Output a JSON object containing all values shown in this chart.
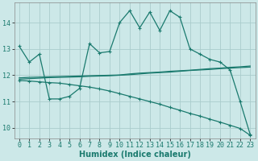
{
  "title": "",
  "xlabel": "Humidex (Indice chaleur)",
  "background_color": "#cce8e8",
  "grid_color": "#aacccc",
  "line_color": "#1a7a6e",
  "xlim": [
    -0.5,
    23.5
  ],
  "ylim": [
    9.6,
    14.75
  ],
  "yticks": [
    10,
    11,
    12,
    13,
    14
  ],
  "xticks": [
    0,
    1,
    2,
    3,
    4,
    5,
    6,
    7,
    8,
    9,
    10,
    11,
    12,
    13,
    14,
    15,
    16,
    17,
    18,
    19,
    20,
    21,
    22,
    23
  ],
  "series1_x": [
    0,
    1,
    2,
    3,
    4,
    5,
    6,
    7,
    8,
    9,
    10,
    11,
    12,
    13,
    14,
    15,
    16,
    17,
    18,
    19,
    20,
    21,
    22,
    23
  ],
  "series1_y": [
    13.1,
    12.5,
    12.8,
    11.1,
    11.1,
    11.2,
    11.5,
    13.2,
    12.85,
    12.9,
    14.0,
    14.45,
    13.8,
    14.4,
    13.7,
    14.45,
    14.2,
    13.0,
    12.8,
    12.6,
    12.5,
    12.2,
    11.0,
    9.75
  ],
  "series2_x": [
    0,
    1,
    2,
    3,
    4,
    5,
    6,
    7,
    8,
    9,
    10,
    11,
    12,
    13,
    14,
    15,
    16,
    17,
    18,
    19,
    20,
    21,
    22,
    23
  ],
  "series2_y": [
    11.9,
    11.92,
    11.93,
    11.94,
    11.95,
    11.96,
    11.97,
    11.98,
    11.99,
    12.0,
    12.01,
    12.05,
    12.08,
    12.1,
    12.12,
    12.15,
    12.17,
    12.19,
    12.22,
    12.25,
    12.27,
    12.3,
    12.32,
    12.35
  ],
  "series3_x": [
    0,
    1,
    2,
    3,
    4,
    5,
    6,
    7,
    8,
    9,
    10,
    11,
    12,
    13,
    14,
    15,
    16,
    17,
    18,
    19,
    20,
    21,
    22,
    23
  ],
  "series3_y": [
    11.85,
    11.87,
    11.89,
    11.91,
    11.92,
    11.93,
    11.94,
    11.96,
    11.97,
    11.98,
    12.0,
    12.02,
    12.05,
    12.08,
    12.1,
    12.12,
    12.15,
    12.18,
    12.2,
    12.22,
    12.25,
    12.27,
    12.29,
    12.31
  ],
  "series4_x": [
    0,
    1,
    2,
    3,
    4,
    5,
    6,
    7,
    8,
    9,
    10,
    11,
    12,
    13,
    14,
    15,
    16,
    17,
    18,
    19,
    20,
    21,
    22,
    23
  ],
  "series4_y": [
    11.8,
    11.78,
    11.75,
    11.72,
    11.7,
    11.65,
    11.6,
    11.55,
    11.48,
    11.4,
    11.3,
    11.2,
    11.1,
    11.0,
    10.9,
    10.78,
    10.67,
    10.55,
    10.45,
    10.33,
    10.22,
    10.1,
    9.98,
    9.72
  ],
  "tick_fontsize": 6,
  "xlabel_fontsize": 7,
  "xlabel_fontweight": "bold"
}
